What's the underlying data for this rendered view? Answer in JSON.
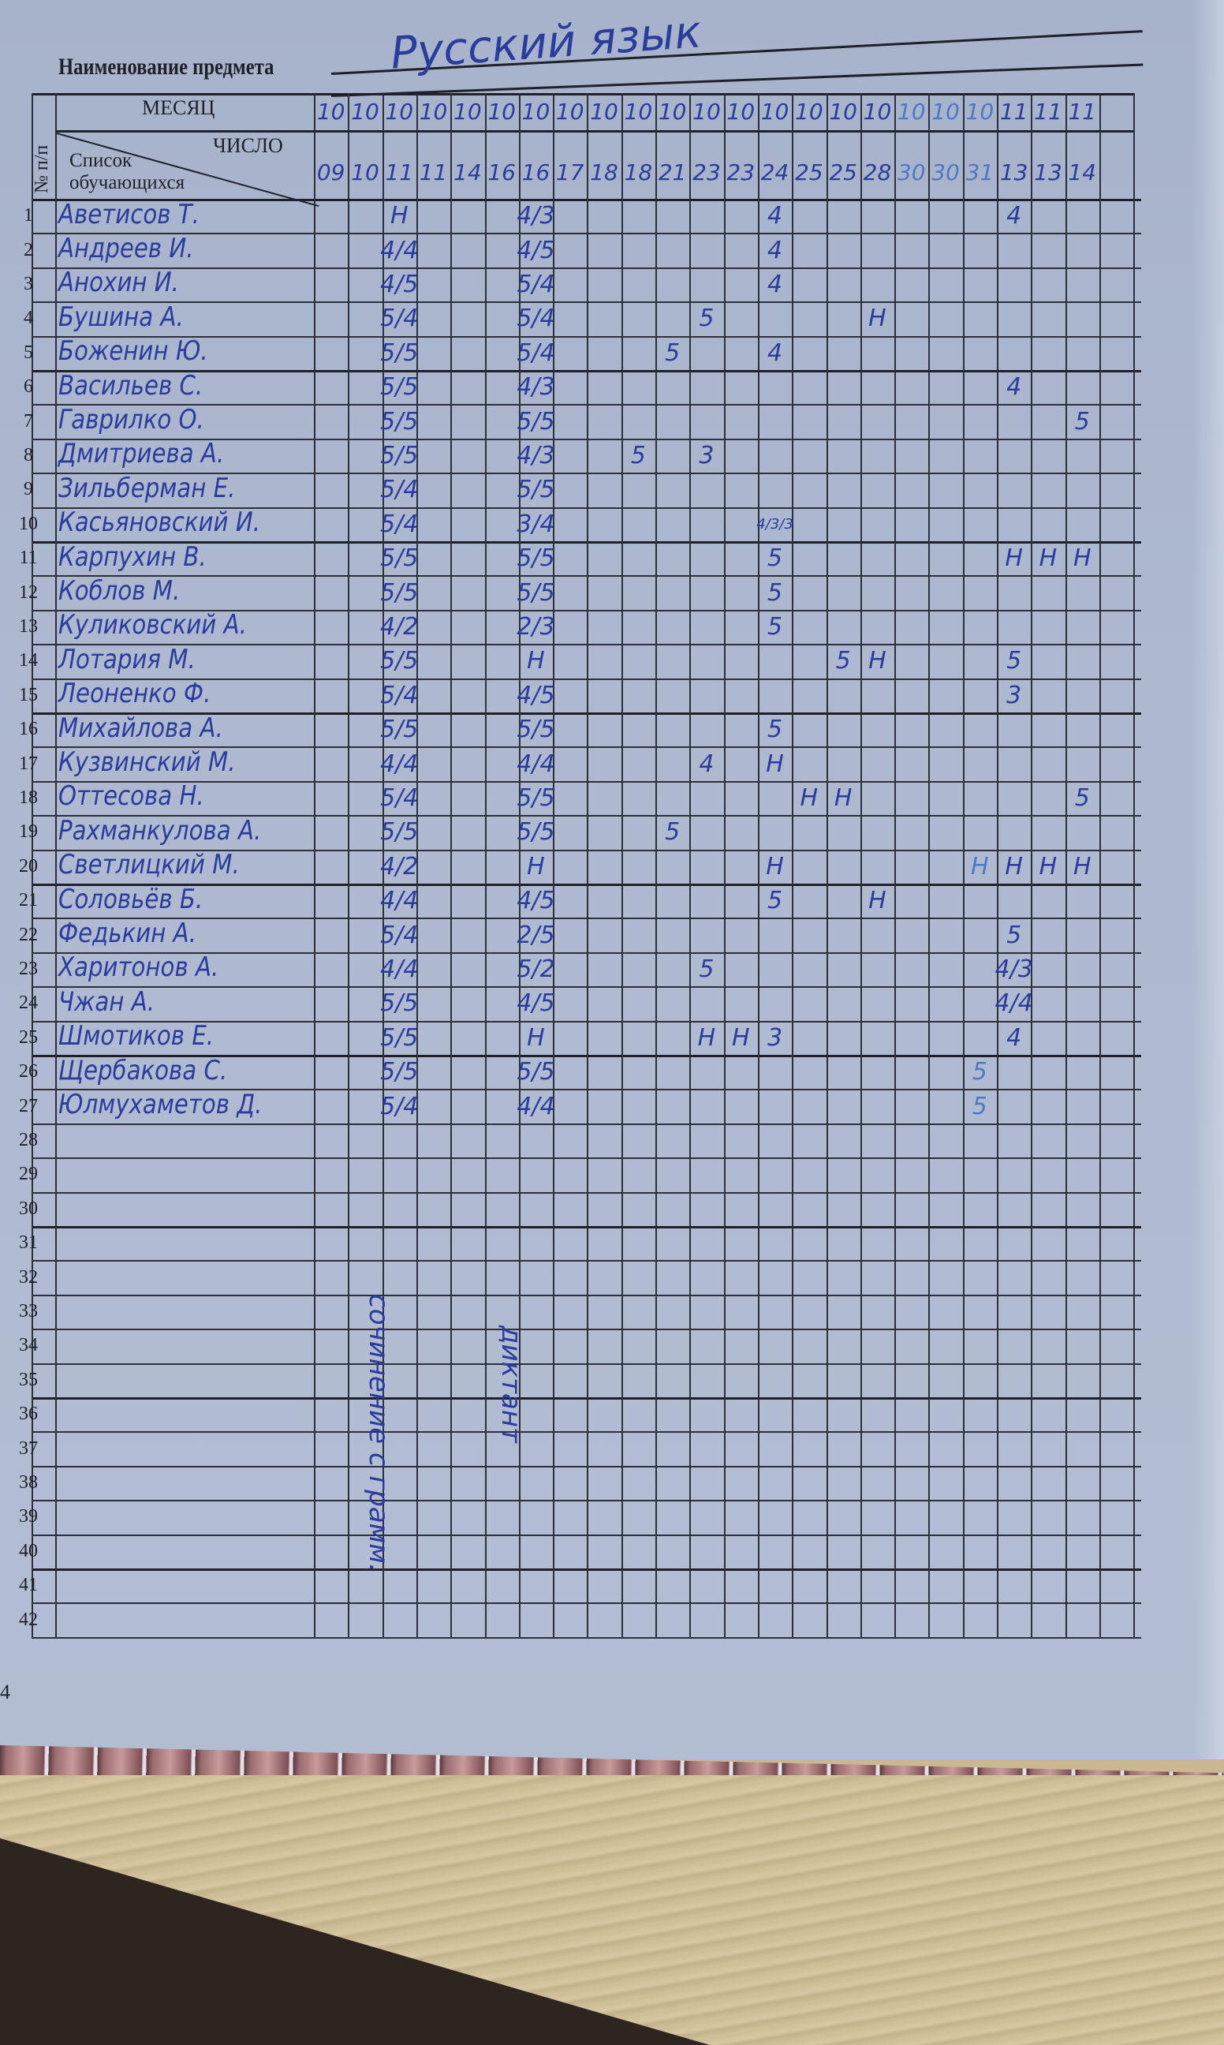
{
  "subject": {
    "label": "Наименование предмета",
    "value": "Русский язык"
  },
  "header": {
    "month_label": "МЕСЯЦ",
    "day_label": "ЧИСЛО",
    "list_label": "Список обучающихся",
    "number_label": "№ п/п"
  },
  "columns": [
    {
      "month": "10",
      "day": "09"
    },
    {
      "month": "10",
      "day": "10"
    },
    {
      "month": "10",
      "day": "11"
    },
    {
      "month": "10",
      "day": "11"
    },
    {
      "month": "10",
      "day": "14"
    },
    {
      "month": "10",
      "day": "16"
    },
    {
      "month": "10",
      "day": "16"
    },
    {
      "month": "10",
      "day": "17"
    },
    {
      "month": "10",
      "day": "18"
    },
    {
      "month": "10",
      "day": "18"
    },
    {
      "month": "10",
      "day": "21"
    },
    {
      "month": "10",
      "day": "23"
    },
    {
      "month": "10",
      "day": "23"
    },
    {
      "month": "10",
      "day": "24"
    },
    {
      "month": "10",
      "day": "25"
    },
    {
      "month": "10",
      "day": "25"
    },
    {
      "month": "10",
      "day": "28"
    },
    {
      "month": "10",
      "day": "30",
      "light": true
    },
    {
      "month": "10",
      "day": "30",
      "light": true
    },
    {
      "month": "10",
      "day": "31",
      "light": true
    },
    {
      "month": "11",
      "day": "13"
    },
    {
      "month": "11",
      "day": "13"
    },
    {
      "month": "11",
      "day": "14"
    },
    {
      "month": "",
      "day": ""
    }
  ],
  "students": [
    {
      "no": "1",
      "name": "Аветисов Т.",
      "marks": {
        "2": "Н",
        "6": "4/3",
        "13": "4",
        "20": "4"
      }
    },
    {
      "no": "2",
      "name": "Андреев И.",
      "marks": {
        "2": "4/4",
        "6": "4/5",
        "13": "4"
      }
    },
    {
      "no": "3",
      "name": "Анохин И.",
      "marks": {
        "2": "4/5",
        "6": "5/4",
        "13": "4"
      }
    },
    {
      "no": "4",
      "name": "Бушина А.",
      "marks": {
        "2": "5/4",
        "6": "5/4",
        "11": "5",
        "16": "Н"
      }
    },
    {
      "no": "5",
      "name": "Боженин Ю.",
      "marks": {
        "2": "5/5",
        "6": "5/4",
        "10": "5",
        "13": "4"
      }
    },
    {
      "no": "6",
      "name": "Васильев С.",
      "marks": {
        "2": "5/5",
        "6": "4/3",
        "20": "4"
      }
    },
    {
      "no": "7",
      "name": "Гаврилко О.",
      "marks": {
        "2": "5/5",
        "6": "5/5",
        "22": "5"
      }
    },
    {
      "no": "8",
      "name": "Дмитриева А.",
      "marks": {
        "2": "5/5",
        "6": "4/3",
        "9": "5",
        "11": "3"
      }
    },
    {
      "no": "9",
      "name": "Зильберман Е.",
      "marks": {
        "2": "5/4",
        "6": "5/5"
      }
    },
    {
      "no": "10",
      "name": "Касьяновский И.",
      "marks": {
        "2": "5/4",
        "6": "3/4",
        "13": "4/3/3"
      }
    },
    {
      "no": "11",
      "name": "Карпухин В.",
      "marks": {
        "2": "5/5",
        "6": "5/5",
        "13": "5",
        "20": "Н",
        "21": "Н",
        "22": "Н"
      }
    },
    {
      "no": "12",
      "name": "Коблов М.",
      "marks": {
        "2": "5/5",
        "6": "5/5",
        "13": "5"
      }
    },
    {
      "no": "13",
      "name": "Куликовский А.",
      "marks": {
        "2": "4/2",
        "6": "2/3",
        "13": "5"
      }
    },
    {
      "no": "14",
      "name": "Лотария М.",
      "marks": {
        "2": "5/5",
        "6": "Н",
        "15": "5",
        "16": "Н",
        "20": "5"
      }
    },
    {
      "no": "15",
      "name": "Леоненко Ф.",
      "marks": {
        "2": "5/4",
        "6": "4/5",
        "20": "3"
      }
    },
    {
      "no": "16",
      "name": "Михайлова А.",
      "marks": {
        "2": "5/5",
        "6": "5/5",
        "13": "5"
      }
    },
    {
      "no": "17",
      "name": "Кузвинский М.",
      "marks": {
        "2": "4/4",
        "6": "4/4",
        "11": "4",
        "13": "Н"
      }
    },
    {
      "no": "18",
      "name": "Оттесова Н.",
      "marks": {
        "2": "5/4",
        "6": "5/5",
        "14": "Н",
        "15": "Н",
        "22": "5"
      }
    },
    {
      "no": "19",
      "name": "Рахманкулова А.",
      "marks": {
        "2": "5/5",
        "6": "5/5",
        "10": "5"
      }
    },
    {
      "no": "20",
      "name": "Светлицкий М.",
      "marks": {
        "2": "4/2",
        "6": "Н",
        "13": "Н",
        "19": "Н",
        "20": "Н",
        "21": "Н",
        "22": "Н"
      }
    },
    {
      "no": "21",
      "name": "Соловьёв Б.",
      "marks": {
        "2": "4/4",
        "6": "4/5",
        "13": "5",
        "16": "Н"
      }
    },
    {
      "no": "22",
      "name": "Федькин А.",
      "marks": {
        "2": "5/4",
        "6": "2/5",
        "20": "5"
      }
    },
    {
      "no": "23",
      "name": "Харитонов А.",
      "marks": {
        "2": "4/4",
        "6": "5/2",
        "11": "5",
        "20": "4/3"
      }
    },
    {
      "no": "24",
      "name": "Чжан А.",
      "marks": {
        "2": "5/5",
        "6": "4/5",
        "20": "4/4"
      }
    },
    {
      "no": "25",
      "name": "Шмотиков Е.",
      "marks": {
        "2": "5/5",
        "6": "Н",
        "11": "Н",
        "12": "Н",
        "13": "3",
        "20": "4"
      }
    },
    {
      "no": "26",
      "name": "Щербакова С.",
      "marks": {
        "2": "5/5",
        "6": "5/5",
        "19": "5"
      }
    },
    {
      "no": "27",
      "name": "Юлмухаметов Д.",
      "marks": {
        "2": "5/4",
        "6": "4/4",
        "19": "5"
      }
    },
    {
      "no": "28",
      "name": "",
      "marks": {}
    },
    {
      "no": "29",
      "name": "",
      "marks": {}
    },
    {
      "no": "30",
      "name": "",
      "marks": {}
    },
    {
      "no": "31",
      "name": "",
      "marks": {}
    },
    {
      "no": "32",
      "name": "",
      "marks": {}
    },
    {
      "no": "33",
      "name": "",
      "marks": {}
    },
    {
      "no": "34",
      "name": "",
      "marks": {}
    },
    {
      "no": "35",
      "name": "",
      "marks": {}
    },
    {
      "no": "36",
      "name": "",
      "marks": {}
    },
    {
      "no": "37",
      "name": "",
      "marks": {}
    },
    {
      "no": "38",
      "name": "",
      "marks": {}
    },
    {
      "no": "39",
      "name": "",
      "marks": {}
    },
    {
      "no": "40",
      "name": "",
      "marks": {}
    },
    {
      "no": "41",
      "name": "",
      "marks": {}
    },
    {
      "no": "42",
      "name": "",
      "marks": {}
    }
  ],
  "annotations": {
    "essay": "сочинение с грамм.",
    "dictation": "диктант"
  },
  "page_number": "4",
  "colors": {
    "paper": "#aeb9d0",
    "ink": "#2a3c9c",
    "light_ink": "#4d79c6",
    "print": "#1e2129"
  }
}
